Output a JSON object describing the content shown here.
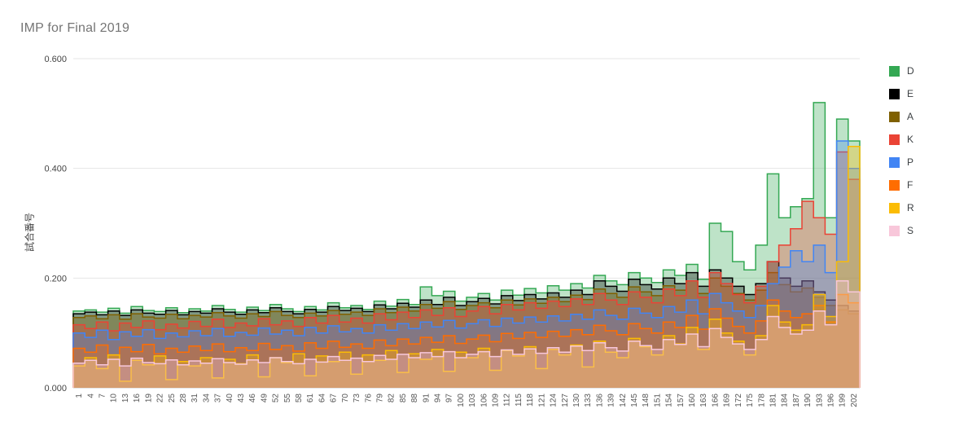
{
  "header": {
    "title": "IMP for Final 2019"
  },
  "chart_data": {
    "type": "area",
    "stepped": true,
    "title": "IMP for Final 2019",
    "xlabel": "",
    "ylabel": "試合番号",
    "ylim": [
      0,
      0.6
    ],
    "y_tick_labels": [
      "0.000",
      "0.200",
      "0.400",
      "0.600"
    ],
    "y_ticks": [
      0,
      0.2,
      0.4,
      0.6
    ],
    "grid": true,
    "legend_position": "right",
    "x_labels_rotated": true,
    "fill_opacity": 0.32,
    "x": [
      1,
      4,
      7,
      10,
      13,
      16,
      19,
      22,
      25,
      28,
      31,
      34,
      37,
      40,
      43,
      46,
      49,
      52,
      55,
      58,
      61,
      64,
      67,
      70,
      73,
      76,
      79,
      82,
      85,
      88,
      91,
      94,
      97,
      100,
      103,
      106,
      109,
      112,
      115,
      118,
      121,
      124,
      127,
      130,
      133,
      136,
      139,
      142,
      145,
      148,
      151,
      154,
      157,
      160,
      163,
      166,
      169,
      172,
      175,
      178,
      181,
      184,
      187,
      190,
      193,
      196,
      199,
      202
    ],
    "series": [
      {
        "name": "D",
        "color": "#34a853",
        "values": [
          0.14,
          0.142,
          0.138,
          0.145,
          0.136,
          0.148,
          0.141,
          0.139,
          0.146,
          0.137,
          0.144,
          0.14,
          0.15,
          0.143,
          0.138,
          0.147,
          0.141,
          0.152,
          0.144,
          0.139,
          0.148,
          0.142,
          0.155,
          0.146,
          0.15,
          0.143,
          0.158,
          0.149,
          0.161,
          0.152,
          0.184,
          0.168,
          0.176,
          0.158,
          0.165,
          0.172,
          0.16,
          0.178,
          0.169,
          0.181,
          0.173,
          0.186,
          0.178,
          0.19,
          0.182,
          0.205,
          0.195,
          0.188,
          0.21,
          0.2,
          0.192,
          0.215,
          0.205,
          0.225,
          0.198,
          0.3,
          0.285,
          0.23,
          0.215,
          0.26,
          0.39,
          0.31,
          0.33,
          0.345,
          0.52,
          0.31,
          0.49,
          0.45
        ]
      },
      {
        "name": "E",
        "color": "#000000",
        "values": [
          0.135,
          0.138,
          0.133,
          0.14,
          0.132,
          0.142,
          0.136,
          0.134,
          0.141,
          0.133,
          0.139,
          0.136,
          0.144,
          0.138,
          0.134,
          0.142,
          0.137,
          0.146,
          0.139,
          0.135,
          0.143,
          0.138,
          0.148,
          0.141,
          0.145,
          0.139,
          0.151,
          0.144,
          0.154,
          0.147,
          0.16,
          0.152,
          0.165,
          0.15,
          0.157,
          0.163,
          0.153,
          0.168,
          0.159,
          0.17,
          0.162,
          0.173,
          0.165,
          0.178,
          0.17,
          0.195,
          0.185,
          0.176,
          0.198,
          0.188,
          0.18,
          0.2,
          0.19,
          0.21,
          0.185,
          0.215,
          0.2,
          0.185,
          0.17,
          0.19,
          0.23,
          0.2,
          0.185,
          0.195,
          0.175,
          0.16,
          0.15,
          0.14
        ]
      },
      {
        "name": "A",
        "color": "#7f6000",
        "values": [
          0.128,
          0.131,
          0.126,
          0.133,
          0.125,
          0.135,
          0.129,
          0.127,
          0.134,
          0.126,
          0.132,
          0.129,
          0.137,
          0.131,
          0.127,
          0.135,
          0.13,
          0.139,
          0.132,
          0.128,
          0.136,
          0.131,
          0.141,
          0.134,
          0.138,
          0.132,
          0.144,
          0.137,
          0.147,
          0.14,
          0.152,
          0.145,
          0.157,
          0.143,
          0.15,
          0.155,
          0.146,
          0.16,
          0.151,
          0.162,
          0.154,
          0.165,
          0.157,
          0.169,
          0.161,
          0.18,
          0.172,
          0.165,
          0.184,
          0.175,
          0.168,
          0.186,
          0.178,
          0.195,
          0.172,
          0.2,
          0.185,
          0.172,
          0.16,
          0.178,
          0.21,
          0.188,
          0.175,
          0.182,
          0.165,
          0.15,
          0.142,
          0.135
        ]
      },
      {
        "name": "K",
        "color": "#ea4335",
        "values": [
          0.115,
          0.108,
          0.12,
          0.104,
          0.118,
          0.11,
          0.122,
          0.106,
          0.116,
          0.109,
          0.121,
          0.112,
          0.125,
          0.11,
          0.118,
          0.113,
          0.126,
          0.115,
          0.122,
          0.112,
          0.128,
          0.118,
          0.132,
          0.12,
          0.127,
          0.118,
          0.135,
          0.124,
          0.138,
          0.128,
          0.142,
          0.132,
          0.146,
          0.13,
          0.14,
          0.148,
          0.135,
          0.152,
          0.142,
          0.155,
          0.145,
          0.158,
          0.148,
          0.162,
          0.152,
          0.172,
          0.16,
          0.152,
          0.175,
          0.165,
          0.155,
          0.18,
          0.168,
          0.195,
          0.165,
          0.21,
          0.19,
          0.17,
          0.155,
          0.185,
          0.23,
          0.26,
          0.29,
          0.34,
          0.31,
          0.28,
          0.43,
          0.38
        ]
      },
      {
        "name": "P",
        "color": "#4285f4",
        "values": [
          0.1,
          0.092,
          0.105,
          0.088,
          0.102,
          0.094,
          0.106,
          0.09,
          0.1,
          0.093,
          0.104,
          0.095,
          0.108,
          0.094,
          0.101,
          0.096,
          0.109,
          0.098,
          0.105,
          0.095,
          0.11,
          0.1,
          0.113,
          0.102,
          0.108,
          0.1,
          0.115,
          0.105,
          0.117,
          0.108,
          0.12,
          0.111,
          0.123,
          0.109,
          0.117,
          0.124,
          0.112,
          0.127,
          0.118,
          0.129,
          0.12,
          0.131,
          0.122,
          0.134,
          0.125,
          0.142,
          0.132,
          0.125,
          0.145,
          0.136,
          0.128,
          0.148,
          0.138,
          0.16,
          0.135,
          0.172,
          0.155,
          0.14,
          0.128,
          0.15,
          0.19,
          0.22,
          0.25,
          0.23,
          0.26,
          0.21,
          0.45,
          0.4
        ]
      },
      {
        "name": "F",
        "color": "#ff6d01",
        "values": [
          0.072,
          0.065,
          0.078,
          0.06,
          0.074,
          0.066,
          0.079,
          0.062,
          0.072,
          0.065,
          0.076,
          0.068,
          0.08,
          0.066,
          0.073,
          0.068,
          0.081,
          0.07,
          0.077,
          0.067,
          0.082,
          0.072,
          0.085,
          0.074,
          0.08,
          0.072,
          0.087,
          0.077,
          0.089,
          0.08,
          0.092,
          0.083,
          0.095,
          0.081,
          0.089,
          0.096,
          0.084,
          0.099,
          0.09,
          0.101,
          0.092,
          0.103,
          0.094,
          0.106,
          0.097,
          0.114,
          0.104,
          0.097,
          0.117,
          0.108,
          0.1,
          0.12,
          0.11,
          0.132,
          0.107,
          0.144,
          0.127,
          0.112,
          0.1,
          0.122,
          0.16,
          0.14,
          0.128,
          0.135,
          0.15,
          0.12,
          0.17,
          0.155
        ]
      },
      {
        "name": "R",
        "color": "#fbbc04",
        "values": [
          0.04,
          0.055,
          0.035,
          0.06,
          0.012,
          0.05,
          0.042,
          0.058,
          0.015,
          0.048,
          0.04,
          0.055,
          0.018,
          0.052,
          0.044,
          0.06,
          0.02,
          0.055,
          0.046,
          0.062,
          0.022,
          0.058,
          0.048,
          0.065,
          0.025,
          0.06,
          0.05,
          0.068,
          0.028,
          0.062,
          0.052,
          0.07,
          0.03,
          0.065,
          0.055,
          0.072,
          0.032,
          0.068,
          0.058,
          0.075,
          0.035,
          0.07,
          0.06,
          0.078,
          0.038,
          0.085,
          0.065,
          0.055,
          0.09,
          0.075,
          0.06,
          0.095,
          0.08,
          0.11,
          0.07,
          0.125,
          0.1,
          0.085,
          0.06,
          0.095,
          0.15,
          0.12,
          0.105,
          0.115,
          0.17,
          0.13,
          0.23,
          0.44
        ]
      },
      {
        "name": "S",
        "color": "#f8c7da",
        "values": [
          0.045,
          0.05,
          0.042,
          0.052,
          0.04,
          0.054,
          0.046,
          0.044,
          0.051,
          0.042,
          0.049,
          0.045,
          0.053,
          0.046,
          0.043,
          0.051,
          0.046,
          0.055,
          0.048,
          0.044,
          0.052,
          0.047,
          0.057,
          0.05,
          0.054,
          0.048,
          0.059,
          0.052,
          0.061,
          0.055,
          0.064,
          0.057,
          0.066,
          0.055,
          0.061,
          0.066,
          0.057,
          0.069,
          0.061,
          0.071,
          0.063,
          0.073,
          0.065,
          0.076,
          0.068,
          0.082,
          0.073,
          0.067,
          0.085,
          0.077,
          0.07,
          0.088,
          0.079,
          0.098,
          0.075,
          0.108,
          0.092,
          0.08,
          0.07,
          0.088,
          0.13,
          0.11,
          0.098,
          0.105,
          0.14,
          0.115,
          0.195,
          0.175
        ]
      }
    ]
  }
}
